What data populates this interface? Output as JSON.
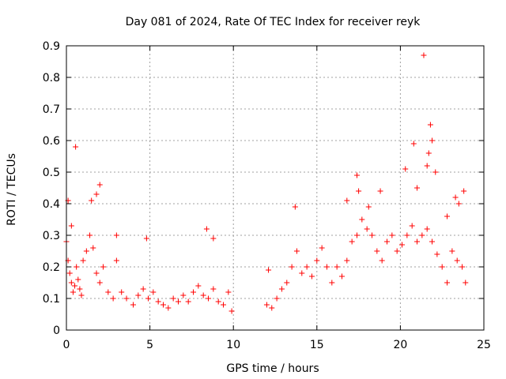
{
  "chart_data": {
    "type": "scatter",
    "title": "Day 081 of 2024, Rate Of TEC Index for receiver reyk",
    "xlabel": "GPS time / hours",
    "ylabel": "ROTI / TECUs",
    "xlim": [
      0,
      25
    ],
    "ylim": [
      0,
      0.9
    ],
    "xticks": [
      "0",
      "5",
      "10",
      "15",
      "20",
      "25"
    ],
    "yticks": [
      "0",
      "0.1",
      "0.2",
      "0.3",
      "0.4",
      "0.5",
      "0.6",
      "0.7",
      "0.8",
      "0.9"
    ],
    "grid": true,
    "marker": "+",
    "color": "#ff0000",
    "series": [
      {
        "x": [
          0.0,
          0.1,
          0.2,
          0.3,
          0.4,
          0.5,
          0.6,
          0.7,
          0.8,
          0.9,
          1.0,
          1.2,
          1.4,
          1.6,
          1.8,
          2.0,
          2.2,
          2.5,
          2.8,
          3.0,
          3.3,
          3.6,
          4.0,
          4.3,
          4.6,
          4.9,
          5.2,
          5.5,
          5.8,
          6.1,
          6.4,
          6.7,
          7.0,
          7.3,
          7.6,
          7.9,
          8.2,
          8.5,
          8.8,
          9.1,
          9.4,
          9.7,
          9.9,
          12.0,
          12.3,
          12.6,
          12.9,
          13.2,
          13.5,
          13.8,
          14.1,
          14.4,
          14.7,
          15.0,
          15.3,
          15.6,
          15.9,
          16.2,
          16.5,
          16.8,
          17.1,
          17.4,
          17.7,
          18.0,
          18.3,
          18.6,
          18.9,
          19.2,
          19.5,
          19.8,
          20.1,
          20.4,
          20.7,
          21.0,
          21.3,
          21.6,
          21.9,
          22.2,
          22.5,
          22.8,
          23.1,
          23.4,
          23.7,
          23.9,
          0.1,
          0.55,
          0.3,
          1.5,
          1.8,
          2.0,
          3.0,
          4.8,
          8.4,
          8.8,
          12.1,
          13.7,
          16.8,
          17.4,
          17.5,
          18.1,
          18.8,
          20.3,
          20.8,
          21.0,
          21.4,
          21.6,
          21.7,
          21.8,
          21.9,
          22.1,
          22.8,
          23.3,
          23.5,
          23.8
        ],
        "y": [
          0.28,
          0.22,
          0.18,
          0.15,
          0.12,
          0.14,
          0.2,
          0.16,
          0.13,
          0.11,
          0.22,
          0.25,
          0.3,
          0.26,
          0.18,
          0.15,
          0.2,
          0.12,
          0.1,
          0.22,
          0.12,
          0.1,
          0.08,
          0.11,
          0.13,
          0.1,
          0.12,
          0.09,
          0.08,
          0.07,
          0.1,
          0.09,
          0.11,
          0.09,
          0.12,
          0.14,
          0.11,
          0.1,
          0.13,
          0.09,
          0.08,
          0.12,
          0.06,
          0.08,
          0.07,
          0.1,
          0.13,
          0.15,
          0.2,
          0.25,
          0.18,
          0.2,
          0.17,
          0.22,
          0.26,
          0.2,
          0.15,
          0.2,
          0.17,
          0.22,
          0.28,
          0.3,
          0.35,
          0.32,
          0.3,
          0.25,
          0.22,
          0.28,
          0.3,
          0.25,
          0.27,
          0.3,
          0.33,
          0.28,
          0.3,
          0.32,
          0.28,
          0.24,
          0.2,
          0.15,
          0.25,
          0.22,
          0.2,
          0.15,
          0.41,
          0.58,
          0.33,
          0.41,
          0.43,
          0.46,
          0.3,
          0.29,
          0.32,
          0.29,
          0.19,
          0.39,
          0.41,
          0.49,
          0.44,
          0.39,
          0.44,
          0.51,
          0.59,
          0.45,
          0.87,
          0.52,
          0.56,
          0.65,
          0.6,
          0.5,
          0.36,
          0.42,
          0.4,
          0.44
        ]
      }
    ]
  }
}
